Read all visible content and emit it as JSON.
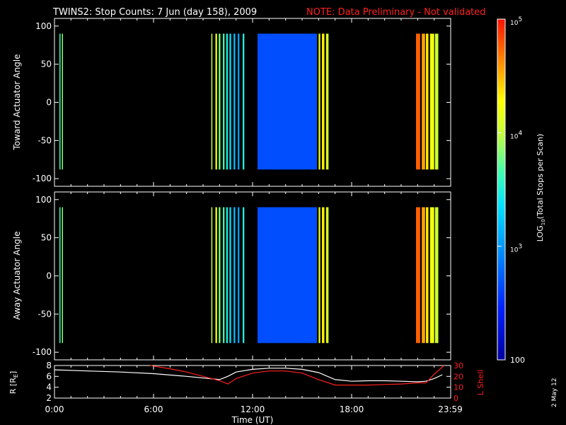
{
  "header": {
    "title": "TWINS2: Stop Counts:  7 Jun (day 158), 2009",
    "note": "NOTE: Data Preliminary - Not validated",
    "note_color": "#ff2020"
  },
  "stamp": "2 May 12",
  "chart_data": [
    {
      "type": "heatmap",
      "ylabel": "Toward Actuator Angle",
      "ylim": [
        -110,
        110
      ],
      "yticks": [
        "100",
        "50",
        "0",
        "-50",
        "-100"
      ],
      "ytick_values": [
        100,
        50,
        0,
        -50,
        -100
      ],
      "grid": false,
      "color_scale": "log",
      "segments": [
        {
          "x0": 0.3,
          "x1": 0.35,
          "level": 0.55
        },
        {
          "x0": 0.45,
          "x1": 0.5,
          "level": 0.62
        },
        {
          "x0": 9.5,
          "x1": 9.55,
          "level": 0.68
        },
        {
          "x0": 9.75,
          "x1": 9.85,
          "level": 0.74
        },
        {
          "x0": 9.95,
          "x1": 10.05,
          "level": 0.6
        },
        {
          "x0": 10.2,
          "x1": 10.3,
          "level": 0.55
        },
        {
          "x0": 10.4,
          "x1": 10.5,
          "level": 0.5
        },
        {
          "x0": 10.6,
          "x1": 10.7,
          "level": 0.45
        },
        {
          "x0": 10.85,
          "x1": 10.95,
          "level": 0.4
        },
        {
          "x0": 11.1,
          "x1": 11.2,
          "level": 0.35
        },
        {
          "x0": 11.4,
          "x1": 11.5,
          "level": 0.5
        },
        {
          "x0": 12.3,
          "x1": 15.9,
          "level": 0.22
        },
        {
          "x0": 16.0,
          "x1": 16.1,
          "level": 0.72
        },
        {
          "x0": 16.2,
          "x1": 16.35,
          "level": 0.78
        },
        {
          "x0": 16.45,
          "x1": 16.6,
          "level": 0.7
        },
        {
          "x0": 21.9,
          "x1": 22.15,
          "level": 0.92
        },
        {
          "x0": 22.25,
          "x1": 22.45,
          "level": 0.85
        },
        {
          "x0": 22.5,
          "x1": 22.65,
          "level": 0.78
        },
        {
          "x0": 22.75,
          "x1": 23.0,
          "level": 0.74
        },
        {
          "x0": 23.05,
          "x1": 23.25,
          "level": 0.68
        }
      ]
    },
    {
      "type": "heatmap",
      "ylabel": "Away Actuator Angle",
      "ylim": [
        -110,
        110
      ],
      "yticks": [
        "100",
        "50",
        "0",
        "-50",
        "-100"
      ],
      "ytick_values": [
        100,
        50,
        0,
        -50,
        -100
      ],
      "grid": false,
      "color_scale": "log",
      "segments": [
        {
          "x0": 0.3,
          "x1": 0.35,
          "level": 0.55
        },
        {
          "x0": 0.45,
          "x1": 0.5,
          "level": 0.62
        },
        {
          "x0": 9.5,
          "x1": 9.55,
          "level": 0.68
        },
        {
          "x0": 9.75,
          "x1": 9.85,
          "level": 0.74
        },
        {
          "x0": 9.95,
          "x1": 10.05,
          "level": 0.6
        },
        {
          "x0": 10.2,
          "x1": 10.3,
          "level": 0.55
        },
        {
          "x0": 10.4,
          "x1": 10.5,
          "level": 0.5
        },
        {
          "x0": 10.6,
          "x1": 10.7,
          "level": 0.45
        },
        {
          "x0": 10.85,
          "x1": 10.95,
          "level": 0.4
        },
        {
          "x0": 11.1,
          "x1": 11.2,
          "level": 0.35
        },
        {
          "x0": 11.4,
          "x1": 11.5,
          "level": 0.5
        },
        {
          "x0": 12.3,
          "x1": 15.9,
          "level": 0.22
        },
        {
          "x0": 16.0,
          "x1": 16.1,
          "level": 0.72
        },
        {
          "x0": 16.2,
          "x1": 16.35,
          "level": 0.78
        },
        {
          "x0": 16.45,
          "x1": 16.6,
          "level": 0.7
        },
        {
          "x0": 21.9,
          "x1": 22.15,
          "level": 0.92
        },
        {
          "x0": 22.25,
          "x1": 22.45,
          "level": 0.85
        },
        {
          "x0": 22.5,
          "x1": 22.65,
          "level": 0.78
        },
        {
          "x0": 22.75,
          "x1": 23.0,
          "level": 0.74
        },
        {
          "x0": 23.05,
          "x1": 23.25,
          "level": 0.68
        }
      ]
    },
    {
      "type": "line",
      "ylabel": "R [RE]",
      "ylabel_base": "R [R",
      "ylabel_sub": "E",
      "ylabel_close": "]",
      "ylabel_color": "#ffffff",
      "y2label": "L Shell",
      "y2label_color": "#ff2020",
      "ylim": [
        2,
        8
      ],
      "yticks": [
        "2",
        "4",
        "6",
        "8"
      ],
      "ytick_values": [
        2,
        4,
        6,
        8
      ],
      "y2lim": [
        0,
        30
      ],
      "y2ticks": [
        "0",
        "10",
        "20",
        "30"
      ],
      "y2tick_values": [
        0,
        10,
        20,
        30
      ],
      "series": [
        {
          "color": "#ffffff",
          "axis": "left",
          "x": [
            0,
            2,
            4,
            6,
            8,
            10,
            10.5,
            11,
            12,
            13,
            14,
            15,
            16,
            17,
            18,
            19,
            20,
            21,
            22,
            22.5,
            23,
            23.5
          ],
          "y": [
            7.2,
            7.0,
            6.8,
            6.5,
            6.0,
            5.4,
            6.0,
            6.8,
            7.3,
            7.5,
            7.5,
            7.3,
            6.7,
            5.4,
            5.1,
            5.2,
            5.2,
            5.1,
            5.0,
            5.1,
            5.6,
            6.3
          ]
        },
        {
          "color": "#ff2020",
          "axis": "right",
          "x": [
            5.8,
            7,
            8,
            9,
            10,
            10.5,
            11,
            12,
            13,
            14,
            15,
            16,
            17,
            18,
            19,
            20,
            21,
            22,
            22.5,
            23,
            23.6
          ],
          "y": [
            31,
            27,
            24,
            20,
            16,
            13,
            18,
            23,
            25,
            25,
            23,
            17,
            12,
            12,
            12,
            12.5,
            13,
            14,
            14,
            22,
            31
          ]
        }
      ]
    }
  ],
  "x_axis": {
    "label": "Time (UT)",
    "xlim": [
      0,
      24
    ],
    "ticks": [
      "0:00",
      "6:00",
      "12:00",
      "18:00",
      "23:59"
    ],
    "tick_values": [
      0,
      6,
      12,
      18,
      23.98
    ]
  },
  "colorbar": {
    "label_parts": [
      "LOG",
      "10",
      "(Total Stops per Scan)"
    ],
    "scale": "log",
    "range": [
      100,
      100000
    ],
    "tick_labels": [
      {
        "base": "10",
        "exp": "5",
        "value": 100000
      },
      {
        "base": "10",
        "exp": "4",
        "value": 10000
      },
      {
        "base": "10",
        "exp": "3",
        "value": 1000
      },
      {
        "base": "100",
        "exp": "",
        "value": 100
      }
    ]
  }
}
